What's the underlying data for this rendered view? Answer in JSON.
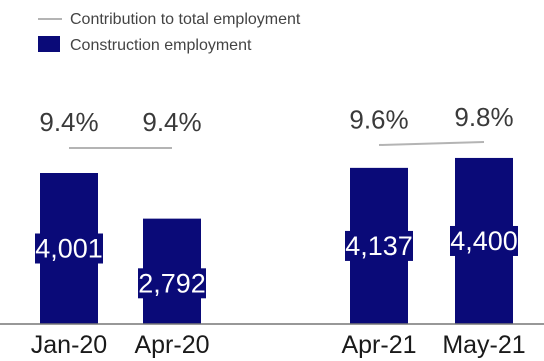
{
  "chart_data": {
    "type": "bar",
    "categories": [
      "Jan-20",
      "Apr-20",
      "Apr-21",
      "May-21"
    ],
    "series": [
      {
        "name": "Construction employment",
        "values": [
          4001,
          2792,
          4137,
          4400
        ],
        "labels": [
          "4,001",
          "2,792",
          "4,137",
          "4,400"
        ],
        "color": "#0a0a78"
      },
      {
        "name": "Contribution to total employment",
        "values": [
          9.4,
          9.4,
          9.6,
          9.8
        ],
        "labels": [
          "9.4%",
          "9.4%",
          "9.6%",
          "9.8%"
        ],
        "unit": "%",
        "color": "#b4b4b4"
      }
    ],
    "grid": false,
    "legend_position": "top-left"
  }
}
